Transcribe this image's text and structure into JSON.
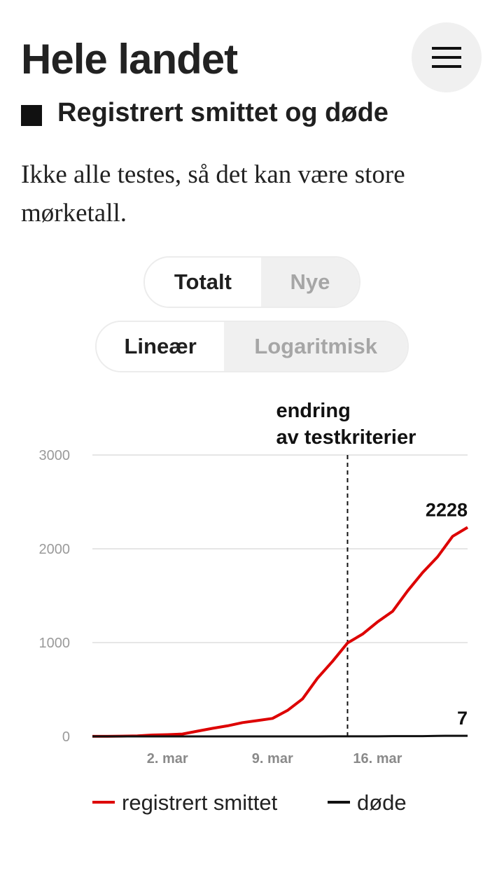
{
  "header": {
    "title": "Hele landet",
    "menu_icon": "hamburger-menu-icon"
  },
  "section": {
    "title": "Registrert smittet og døde",
    "icon": "black-square-icon"
  },
  "description": "Ikke alle testes, så det kan være store mørketall.",
  "toggles": {
    "mode": {
      "options": [
        "Totalt",
        "Nye"
      ],
      "selected": "Totalt"
    },
    "scale": {
      "options": [
        "Lineær",
        "Logaritmisk"
      ],
      "selected": "Lineær"
    }
  },
  "colors": {
    "infected": "#dd0000",
    "deaths": "#111111",
    "inactive_bg": "#f0f0f0"
  },
  "chart_data": {
    "type": "line",
    "x": [
      "2020-02-26",
      "2020-02-27",
      "2020-02-28",
      "2020-02-29",
      "2020-03-01",
      "2020-03-02",
      "2020-03-03",
      "2020-03-04",
      "2020-03-05",
      "2020-03-06",
      "2020-03-07",
      "2020-03-08",
      "2020-03-09",
      "2020-03-10",
      "2020-03-11",
      "2020-03-12",
      "2020-03-13",
      "2020-03-14",
      "2020-03-15",
      "2020-03-16",
      "2020-03-17",
      "2020-03-18",
      "2020-03-19",
      "2020-03-20",
      "2020-03-21",
      "2020-03-22"
    ],
    "xticks": [
      {
        "date": "2020-03-02",
        "label": "2. mar"
      },
      {
        "date": "2020-03-09",
        "label": "9. mar"
      },
      {
        "date": "2020-03-16",
        "label": "16. mar"
      }
    ],
    "series": [
      {
        "name": "registrert smittet",
        "color": "#dd0000",
        "values": [
          1,
          1,
          3,
          6,
          15,
          19,
          25,
          56,
          86,
          113,
          147,
          169,
          192,
          277,
          400,
          621,
          800,
          996,
          1090,
          1221,
          1333,
          1550,
          1746,
          1914,
          2133,
          2228
        ],
        "end_label": "2228"
      },
      {
        "name": "døde",
        "color": "#111111",
        "values": [
          0,
          0,
          0,
          0,
          0,
          0,
          0,
          0,
          0,
          0,
          0,
          0,
          0,
          0,
          0,
          0,
          1,
          1,
          1,
          1,
          3,
          3,
          3,
          6,
          7,
          7
        ],
        "end_label": "7"
      }
    ],
    "ylim": [
      0,
      3000
    ],
    "yticks": [
      "0",
      "1000",
      "2000",
      "3000"
    ],
    "grid": true,
    "annotations": [
      {
        "date": "2020-03-14",
        "lines": [
          "endring",
          "av testkriterier"
        ]
      }
    ],
    "legend_position": "bottom"
  }
}
